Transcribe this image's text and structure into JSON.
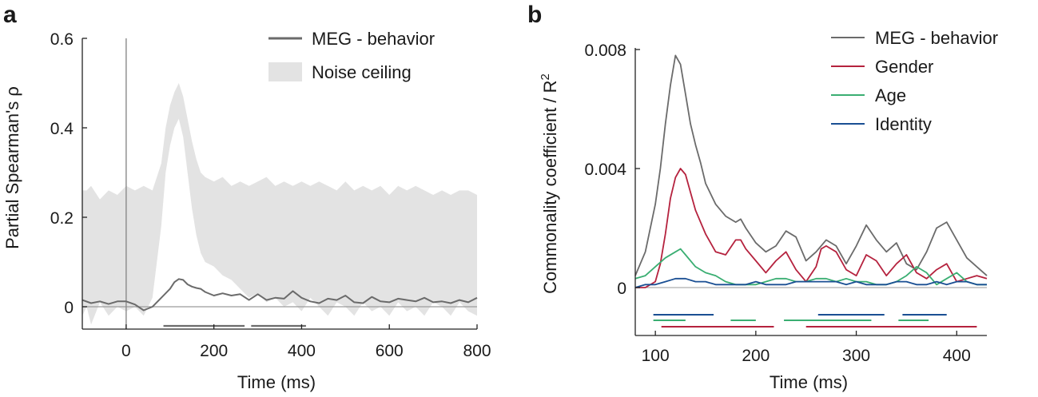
{
  "chart_data": [
    {
      "panel": "a",
      "type": "line",
      "xlabel": "Time (ms)",
      "ylabel": "Partial Spearman's ρ",
      "xlim": [
        -100,
        800
      ],
      "ylim": [
        -0.05,
        0.6
      ],
      "xticks": [
        0,
        200,
        400,
        600,
        800
      ],
      "xtick_labels": [
        "0",
        "200",
        "400",
        "600",
        "800"
      ],
      "yticks": [
        0,
        0.2,
        0.4,
        0.6
      ],
      "ytick_labels": [
        "0",
        "0.2",
        "0.4",
        "0.6"
      ],
      "legend": [
        {
          "label": "MEG - behavior",
          "kind": "line",
          "color": "#6b6b6b"
        },
        {
          "label": "Noise ceiling",
          "kind": "patch",
          "color": "#e3e3e3"
        }
      ],
      "series": [
        {
          "name": "MEG - behavior",
          "color": "#6b6b6b",
          "x": [
            -100,
            -80,
            -60,
            -40,
            -20,
            0,
            20,
            40,
            60,
            80,
            90,
            100,
            110,
            120,
            130,
            140,
            150,
            160,
            170,
            180,
            200,
            220,
            240,
            260,
            280,
            300,
            320,
            340,
            360,
            380,
            400,
            420,
            440,
            460,
            480,
            500,
            520,
            540,
            560,
            580,
            600,
            620,
            640,
            660,
            680,
            700,
            720,
            740,
            760,
            780,
            800
          ],
          "values": [
            0.015,
            0.008,
            0.012,
            0.006,
            0.012,
            0.012,
            0.005,
            -0.008,
            0.0,
            0.02,
            0.03,
            0.04,
            0.055,
            0.062,
            0.06,
            0.05,
            0.045,
            0.042,
            0.04,
            0.033,
            0.025,
            0.03,
            0.025,
            0.028,
            0.015,
            0.028,
            0.015,
            0.02,
            0.018,
            0.035,
            0.02,
            0.012,
            0.008,
            0.018,
            0.015,
            0.025,
            0.01,
            0.008,
            0.022,
            0.012,
            0.01,
            0.018,
            0.015,
            0.012,
            0.02,
            0.01,
            0.012,
            0.008,
            0.015,
            0.01,
            0.02
          ]
        }
      ],
      "noise_ceiling": {
        "name": "Noise ceiling",
        "x": [
          -100,
          -90,
          -80,
          -60,
          -40,
          -20,
          0,
          20,
          40,
          60,
          80,
          90,
          100,
          110,
          120,
          130,
          140,
          150,
          160,
          170,
          180,
          200,
          220,
          240,
          260,
          280,
          300,
          320,
          340,
          360,
          380,
          400,
          420,
          440,
          460,
          480,
          500,
          520,
          540,
          560,
          580,
          600,
          620,
          640,
          660,
          680,
          700,
          720,
          740,
          760,
          780,
          800
        ],
        "upper": [
          0.26,
          0.26,
          0.27,
          0.24,
          0.26,
          0.25,
          0.27,
          0.26,
          0.27,
          0.26,
          0.32,
          0.4,
          0.45,
          0.48,
          0.5,
          0.47,
          0.42,
          0.37,
          0.33,
          0.3,
          0.29,
          0.28,
          0.29,
          0.27,
          0.28,
          0.27,
          0.28,
          0.29,
          0.27,
          0.28,
          0.27,
          0.28,
          0.27,
          0.28,
          0.27,
          0.26,
          0.28,
          0.26,
          0.27,
          0.26,
          0.27,
          0.25,
          0.27,
          0.26,
          0.27,
          0.26,
          0.25,
          0.26,
          0.25,
          0.26,
          0.26,
          0.25
        ],
        "lower": [
          -0.02,
          0.0,
          -0.04,
          0.01,
          -0.02,
          0.0,
          -0.01,
          0.0,
          -0.02,
          0.02,
          0.18,
          0.3,
          0.36,
          0.4,
          0.42,
          0.38,
          0.3,
          0.22,
          0.16,
          0.12,
          0.1,
          0.09,
          0.07,
          0.06,
          0.04,
          0.02,
          0.03,
          0.01,
          0.02,
          0.0,
          0.01,
          -0.01,
          0.02,
          0.0,
          -0.02,
          0.01,
          0.0,
          -0.02,
          0.01,
          -0.01,
          0.0,
          -0.02,
          0.01,
          -0.01,
          0.0,
          -0.02,
          0.01,
          0.0,
          -0.02,
          0.01,
          -0.01,
          -0.02
        ]
      },
      "significance_bars": [
        {
          "color": "#6b6b6b",
          "segments": [
            [
              85,
              270
            ],
            [
              285,
              410
            ]
          ]
        }
      ],
      "reference_lines": {
        "zero_h": 0,
        "zero_v": 0
      }
    },
    {
      "panel": "b",
      "type": "line",
      "xlabel": "Time (ms)",
      "ylabel": "Commonality coefficient / R",
      "ylabel_superscript": "2",
      "xlim": [
        80,
        430
      ],
      "ylim": [
        -0.0012,
        0.008
      ],
      "xticks": [
        100,
        200,
        300,
        400
      ],
      "xtick_labels": [
        "100",
        "200",
        "300",
        "400"
      ],
      "yticks": [
        0,
        0.004,
        0.008
      ],
      "ytick_labels": [
        "0",
        "0.004",
        "0.008"
      ],
      "legend": [
        {
          "label": "MEG - behavior",
          "color": "#6b6b6b"
        },
        {
          "label": "Gender",
          "color": "#b5223e"
        },
        {
          "label": "Age",
          "color": "#3aae72"
        },
        {
          "label": "Identity",
          "color": "#1a4f93"
        }
      ],
      "series": [
        {
          "name": "MEG - behavior",
          "color": "#6b6b6b",
          "x": [
            80,
            90,
            100,
            105,
            110,
            115,
            120,
            125,
            130,
            135,
            140,
            145,
            150,
            160,
            170,
            180,
            185,
            190,
            200,
            210,
            220,
            230,
            240,
            250,
            260,
            270,
            280,
            290,
            300,
            310,
            320,
            330,
            340,
            350,
            360,
            370,
            380,
            390,
            400,
            410,
            420,
            430
          ],
          "values": [
            0.0004,
            0.0012,
            0.0028,
            0.004,
            0.0055,
            0.0068,
            0.0078,
            0.0075,
            0.0065,
            0.0055,
            0.0048,
            0.0042,
            0.0035,
            0.0028,
            0.0024,
            0.0022,
            0.0023,
            0.002,
            0.0015,
            0.0012,
            0.0014,
            0.0019,
            0.0017,
            0.0009,
            0.0012,
            0.0016,
            0.0014,
            0.0008,
            0.0014,
            0.0021,
            0.0016,
            0.0012,
            0.0015,
            0.0008,
            0.0006,
            0.0012,
            0.002,
            0.0022,
            0.0016,
            0.001,
            0.0007,
            0.0004
          ]
        },
        {
          "name": "Gender",
          "color": "#b5223e",
          "x": [
            80,
            90,
            100,
            105,
            110,
            115,
            120,
            125,
            130,
            135,
            140,
            150,
            160,
            170,
            180,
            185,
            190,
            200,
            210,
            220,
            230,
            240,
            250,
            260,
            265,
            270,
            280,
            290,
            300,
            310,
            320,
            330,
            340,
            350,
            360,
            370,
            380,
            390,
            400,
            410,
            420,
            430
          ],
          "values": [
            0.0,
            0.0,
            0.0002,
            0.0008,
            0.0018,
            0.003,
            0.0037,
            0.004,
            0.0038,
            0.0032,
            0.0026,
            0.0018,
            0.0012,
            0.0011,
            0.0016,
            0.0016,
            0.0013,
            0.0009,
            0.0005,
            0.0009,
            0.0012,
            0.0006,
            0.0002,
            0.0007,
            0.0013,
            0.0014,
            0.0012,
            0.0006,
            0.0004,
            0.0011,
            0.0009,
            0.0004,
            0.0008,
            0.0011,
            0.0005,
            0.0003,
            0.0006,
            0.0008,
            0.0002,
            0.0003,
            0.0004,
            0.0003
          ]
        },
        {
          "name": "Age",
          "color": "#3aae72",
          "x": [
            80,
            90,
            100,
            110,
            120,
            125,
            130,
            140,
            150,
            160,
            170,
            180,
            190,
            200,
            210,
            220,
            230,
            240,
            250,
            260,
            270,
            280,
            290,
            300,
            310,
            320,
            330,
            340,
            350,
            360,
            370,
            380,
            390,
            400,
            410,
            420,
            430
          ],
          "values": [
            0.0003,
            0.0004,
            0.0007,
            0.001,
            0.0012,
            0.0013,
            0.0011,
            0.0007,
            0.0005,
            0.0004,
            0.0002,
            0.0001,
            0.0001,
            0.0001,
            0.0002,
            0.0003,
            0.0003,
            0.0002,
            0.0002,
            0.0003,
            0.0003,
            0.0002,
            0.0003,
            0.0002,
            0.0002,
            0.0001,
            0.0001,
            0.0002,
            0.0004,
            0.0007,
            0.0005,
            0.0001,
            0.0003,
            0.0005,
            0.0002,
            0.0001,
            0.0001
          ]
        },
        {
          "name": "Identity",
          "color": "#1a4f93",
          "x": [
            80,
            90,
            100,
            110,
            120,
            130,
            140,
            150,
            160,
            170,
            180,
            190,
            200,
            210,
            220,
            230,
            240,
            250,
            260,
            270,
            280,
            290,
            300,
            310,
            320,
            330,
            340,
            350,
            360,
            370,
            380,
            390,
            400,
            410,
            420,
            430
          ],
          "values": [
            0.0,
            0.0001,
            0.0001,
            0.0002,
            0.0003,
            0.0003,
            0.0002,
            0.0002,
            0.0001,
            0.0001,
            0.0001,
            0.0001,
            0.0002,
            0.0001,
            0.0001,
            0.0001,
            0.0002,
            0.0002,
            0.0002,
            0.0002,
            0.0002,
            0.0001,
            0.0002,
            0.0001,
            0.0001,
            0.0001,
            0.0002,
            0.0002,
            0.0001,
            0.0001,
            0.0002,
            0.0001,
            0.0002,
            0.0002,
            0.0001,
            0.0001
          ]
        }
      ],
      "significance_bars": [
        {
          "name": "Identity",
          "color": "#1a4f93",
          "segments": [
            [
              98,
              158
            ],
            [
              262,
              328
            ],
            [
              346,
              390
            ]
          ]
        },
        {
          "name": "Age",
          "color": "#3aae72",
          "segments": [
            [
              98,
              130
            ],
            [
              175,
              200
            ],
            [
              228,
              315
            ],
            [
              342,
              372
            ]
          ]
        },
        {
          "name": "Gender",
          "color": "#b5223e",
          "segments": [
            [
              106,
              218
            ],
            [
              250,
              420
            ]
          ]
        }
      ],
      "reference_lines": {
        "zero_h": 0
      }
    }
  ]
}
